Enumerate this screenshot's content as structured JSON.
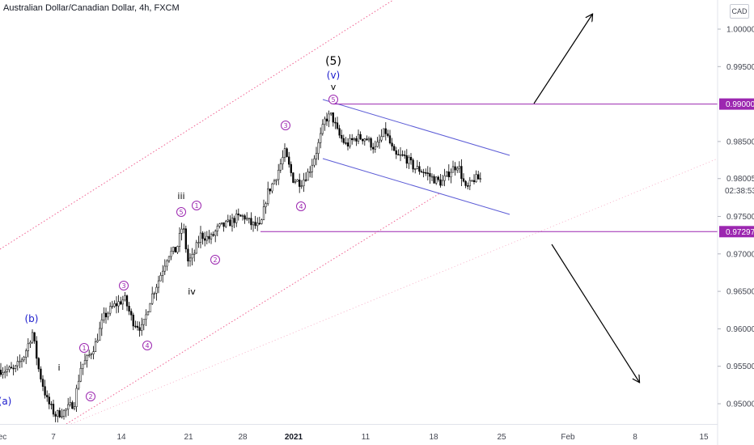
{
  "header": {
    "title": "Australian Dollar/Canadian Dollar, 4h, FXCM"
  },
  "currency_button": {
    "label": "CAD"
  },
  "price_tags": [
    {
      "label": "0.99000",
      "value": 0.99
    },
    {
      "label": "0.97297",
      "value": 0.97297
    }
  ],
  "countdown": {
    "label": "02:38:53"
  },
  "colors": {
    "purple": "#9c27b0",
    "blue_label": "#1a1acc",
    "channel_blue": "#5b5bd6",
    "pink_dotted": "#f06292",
    "tag_bg": "#9c27b0"
  },
  "chart_data": {
    "type": "candlestick",
    "title": "Australian Dollar/Canadian Dollar, 4h, FXCM",
    "ylim": [
      0.947,
      1.0025
    ],
    "y_ticks": [
      "1.00000",
      "0.99500",
      "0.98500",
      "0.98005",
      "0.97500",
      "0.97000",
      "0.96500",
      "0.96000",
      "0.95500",
      "0.95000"
    ],
    "x_ticks": [
      "ec",
      "7",
      "14",
      "21",
      "28",
      "2021",
      "11",
      "18",
      "25",
      "Feb",
      "8",
      "15"
    ],
    "price_path": [
      [
        0,
        0.9545
      ],
      [
        18,
        0.9545
      ],
      [
        30,
        0.9565
      ],
      [
        40,
        0.9595
      ],
      [
        48,
        0.9545
      ],
      [
        58,
        0.9505
      ],
      [
        68,
        0.9485
      ],
      [
        80,
        0.949
      ],
      [
        92,
        0.9502
      ],
      [
        100,
        0.955
      ],
      [
        108,
        0.956
      ],
      [
        118,
        0.958
      ],
      [
        128,
        0.9615
      ],
      [
        140,
        0.963
      ],
      [
        154,
        0.964
      ],
      [
        164,
        0.961
      ],
      [
        176,
        0.96
      ],
      [
        186,
        0.964
      ],
      [
        196,
        0.9665
      ],
      [
        208,
        0.97
      ],
      [
        218,
        0.9705
      ],
      [
        226,
        0.974
      ],
      [
        232,
        0.969
      ],
      [
        238,
        0.9695
      ],
      [
        248,
        0.9725
      ],
      [
        260,
        0.972
      ],
      [
        270,
        0.9735
      ],
      [
        282,
        0.974
      ],
      [
        292,
        0.9748
      ],
      [
        302,
        0.975
      ],
      [
        310,
        0.974
      ],
      [
        322,
        0.9735
      ],
      [
        330,
        0.978
      ],
      [
        340,
        0.98
      ],
      [
        352,
        0.9835
      ],
      [
        362,
        0.98
      ],
      [
        372,
        0.9795
      ],
      [
        382,
        0.981
      ],
      [
        392,
        0.984
      ],
      [
        402,
        0.988
      ],
      [
        410,
        0.9885
      ],
      [
        418,
        0.986
      ],
      [
        428,
        0.9845
      ],
      [
        440,
        0.9855
      ],
      [
        452,
        0.9855
      ],
      [
        464,
        0.984
      ],
      [
        476,
        0.9865
      ],
      [
        488,
        0.983
      ],
      [
        500,
        0.983
      ],
      [
        512,
        0.9815
      ],
      [
        524,
        0.981
      ],
      [
        536,
        0.98
      ],
      [
        546,
        0.9795
      ],
      [
        556,
        0.981
      ],
      [
        566,
        0.982
      ],
      [
        576,
        0.9785
      ],
      [
        586,
        0.98
      ],
      [
        594,
        0.98
      ]
    ],
    "horizontal_levels": [
      0.99,
      0.97297
    ],
    "wave_labels": [
      "(a)",
      "(b)",
      "i",
      "1",
      "2",
      "3",
      "4",
      "iii",
      "5",
      "1",
      "iv",
      "2",
      "3",
      "4",
      "(5)",
      "(v)",
      "v",
      "5"
    ],
    "series": [
      {
        "name": "",
        "type": "candles"
      }
    ]
  }
}
